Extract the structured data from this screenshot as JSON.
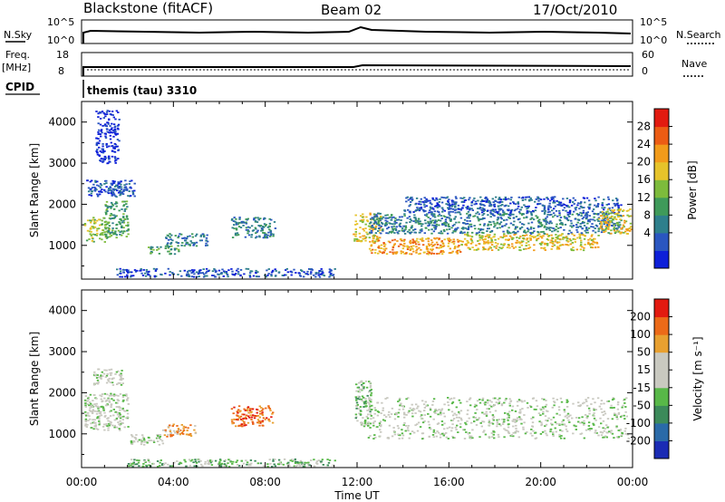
{
  "header": {
    "radar": "Blackstone (fitACF)",
    "beam": "Beam 02",
    "date": "17/Oct/2010"
  },
  "status_panels": {
    "nsky": {
      "left_label": "N.Sky",
      "right_label": "N.Search",
      "left_ticks": [
        "10^5",
        "10^0"
      ],
      "right_ticks": [
        "10^5",
        "10^0"
      ]
    },
    "freq": {
      "left_label_1": "Freq.",
      "left_label_2": "[MHz]",
      "right_label": "Nave",
      "left_ticks": [
        "18",
        "8"
      ],
      "right_ticks": [
        "60",
        "0"
      ]
    },
    "cpid": {
      "label": "CPID",
      "value": "themis (tau) 3310"
    }
  },
  "chart_data": [
    {
      "type": "heatmap",
      "panel": "power",
      "ylabel": "Slant Range [km]",
      "xlabel": "Time UT",
      "yticks": [
        1000,
        2000,
        3000,
        4000
      ],
      "ylim": [
        180,
        4500
      ],
      "xticks": [
        "00:00",
        "04:00",
        "08:00",
        "12:00",
        "16:00",
        "20:00",
        "00:00"
      ],
      "xlim_hours": [
        0,
        24
      ],
      "colorbar": {
        "label": "Power [dB]",
        "ticks": [
          "28",
          "24",
          "20",
          "16",
          "12",
          "8",
          "4"
        ],
        "colors": [
          "#0d1fd8",
          "#2a56c0",
          "#2e7f8c",
          "#3f9a5a",
          "#7dbb3c",
          "#e6c32a",
          "#f29b1a",
          "#ec5c14",
          "#e21a10"
        ]
      },
      "bands": [
        {
          "t0": 0.1,
          "t1": 1.2,
          "r0": 1100,
          "r1": 1700,
          "level": 4
        },
        {
          "t0": 1.0,
          "t1": 2.0,
          "r0": 1200,
          "r1": 2100,
          "level": 3
        },
        {
          "t0": 0.2,
          "t1": 1.8,
          "r0": 2200,
          "r1": 2600,
          "level": 1
        },
        {
          "t0": 1.2,
          "t1": 2.3,
          "r0": 2200,
          "r1": 2600,
          "level": 1
        },
        {
          "t0": 0.6,
          "t1": 1.6,
          "r0": 3000,
          "r1": 4300,
          "level": 0
        },
        {
          "t0": 2.8,
          "t1": 4.2,
          "r0": 800,
          "r1": 1000,
          "level": 3
        },
        {
          "t0": 3.6,
          "t1": 5.5,
          "r0": 1000,
          "r1": 1300,
          "level": 2
        },
        {
          "t0": 6.5,
          "t1": 8.4,
          "r0": 1200,
          "r1": 1700,
          "level": 2
        },
        {
          "t0": 11.8,
          "t1": 13.0,
          "r0": 1100,
          "r1": 1800,
          "level": 5
        },
        {
          "t0": 12.5,
          "t1": 16.5,
          "r0": 800,
          "r1": 1200,
          "level": 6
        },
        {
          "t0": 16.5,
          "t1": 22.5,
          "r0": 900,
          "r1": 1300,
          "level": 5
        },
        {
          "t0": 12.5,
          "t1": 23.5,
          "r0": 1300,
          "r1": 1800,
          "level": 2
        },
        {
          "t0": 14.0,
          "t1": 23.5,
          "r0": 1800,
          "r1": 2200,
          "level": 1
        },
        {
          "t0": 22.5,
          "t1": 23.9,
          "r0": 1300,
          "r1": 1900,
          "level": 5
        },
        {
          "t0": 1.5,
          "t1": 11.0,
          "r0": 250,
          "r1": 450,
          "level": 1
        }
      ]
    },
    {
      "type": "heatmap",
      "panel": "velocity",
      "ylabel": "Slant Range [km]",
      "xlabel": "Time UT",
      "yticks": [
        1000,
        2000,
        3000,
        4000
      ],
      "ylim": [
        180,
        4500
      ],
      "xticks": [
        "00:00",
        "04:00",
        "08:00",
        "12:00",
        "16:00",
        "20:00",
        "00:00"
      ],
      "xlim_hours": [
        0,
        24
      ],
      "colorbar": {
        "label": "Velocity [m s⁻¹]",
        "ticks": [
          "200",
          "100",
          "50",
          "15",
          "-15",
          "-50",
          "-100",
          "-200"
        ],
        "colors": [
          "#1a2bb4",
          "#2a6aa8",
          "#3c8a5a",
          "#58b848",
          "#c9c9c0",
          "#c9c9c0",
          "#e8a030",
          "#ec6a18",
          "#e21a10"
        ]
      },
      "bands": [
        {
          "t0": 0.1,
          "t1": 2.0,
          "r0": 1100,
          "r1": 2000,
          "level": 4
        },
        {
          "t0": 0.5,
          "t1": 1.8,
          "r0": 2200,
          "r1": 2600,
          "level": 4
        },
        {
          "t0": 2.0,
          "t1": 3.5,
          "r0": 750,
          "r1": 1000,
          "level": 4
        },
        {
          "t0": 3.5,
          "t1": 5.0,
          "r0": 950,
          "r1": 1250,
          "level": 6
        },
        {
          "t0": 6.5,
          "t1": 8.3,
          "r0": 1200,
          "r1": 1700,
          "level": 7
        },
        {
          "t0": 11.9,
          "t1": 12.6,
          "r0": 1200,
          "r1": 2300,
          "level": 3
        },
        {
          "t0": 12.4,
          "t1": 23.8,
          "r0": 900,
          "r1": 1900,
          "level": 4
        },
        {
          "t0": 2.0,
          "t1": 11.0,
          "r0": 220,
          "r1": 400,
          "level": 3
        }
      ]
    }
  ]
}
